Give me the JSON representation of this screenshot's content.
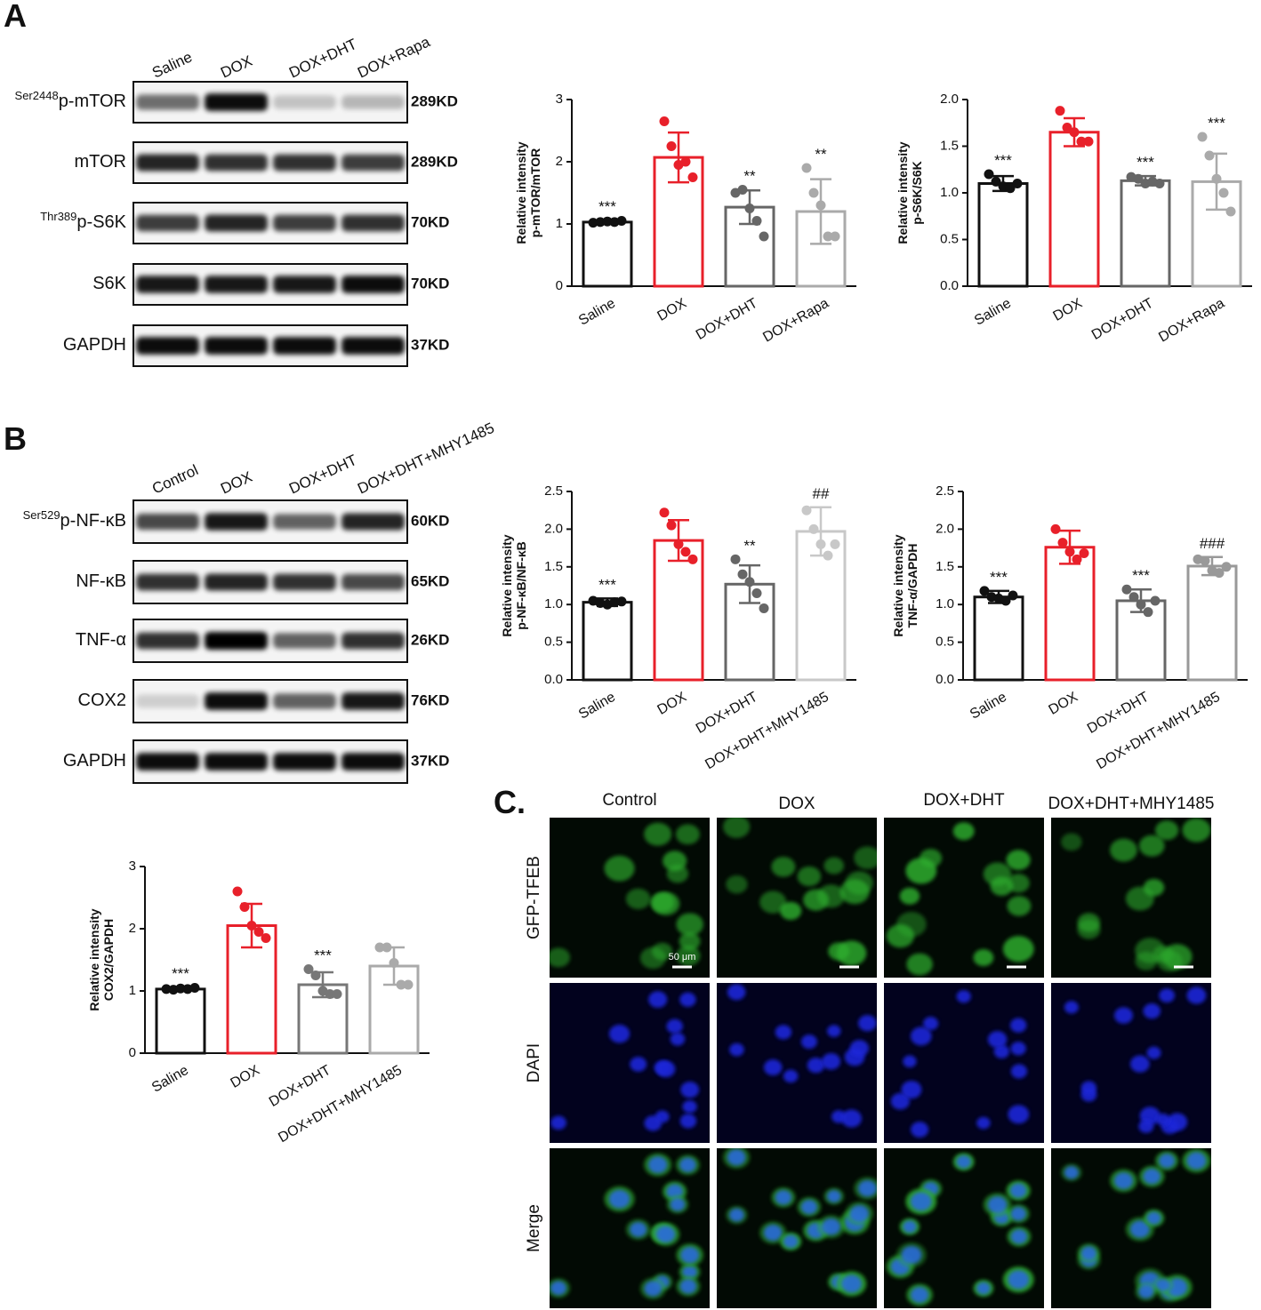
{
  "panel_labels": [
    "A",
    "B",
    "C."
  ],
  "blots": [
    {
      "lanes": [
        "Saline",
        "DOX",
        "DOX+DHT",
        "DOX+Rapa"
      ],
      "rows": [
        {
          "modifier": "Ser2448",
          "label": "p-mTOR",
          "size": "289KD"
        },
        {
          "label": "mTOR",
          "size": "289KD"
        },
        {
          "modifier": "Thr389",
          "label": "p-S6K",
          "size": "70KD"
        },
        {
          "label": "S6K",
          "size": "70KD"
        },
        {
          "label": "GAPDH",
          "size": "37KD"
        }
      ]
    },
    {
      "lanes": [
        "Control",
        "DOX",
        "DOX+DHT",
        "DOX+DHT+MHY1485"
      ],
      "rows": [
        {
          "modifier": "Ser529",
          "label": "p-NF-κB",
          "size": "60KD"
        },
        {
          "label": "NF-κB",
          "size": "65KD"
        },
        {
          "label": "TNF-α",
          "size": "26KD"
        },
        {
          "label": "COX2",
          "size": "76KD"
        },
        {
          "label": "GAPDH",
          "size": "37KD"
        }
      ]
    }
  ],
  "microscopy": {
    "columns": [
      "Control",
      "DOX",
      "DOX+DHT",
      "DOX+DHT+MHY1485"
    ],
    "rows": [
      "GFP-TFEB",
      "DAPI",
      "Merge"
    ],
    "scale_bar": "50 μm"
  },
  "chart_data": [
    {
      "type": "bar",
      "ylabel": [
        "Relative intensity",
        "p-mTOR/mTOR"
      ],
      "categories": [
        "Saline",
        "DOX",
        "DOX+DHT",
        "DOX+Rapa"
      ],
      "values": [
        1.03,
        2.07,
        1.27,
        1.2
      ],
      "errors": [
        0.03,
        0.4,
        0.27,
        0.52
      ],
      "points": [
        [
          1.02,
          1.03,
          1.04,
          1.03,
          1.05
        ],
        [
          2.65,
          2.25,
          1.95,
          2.0,
          1.75
        ],
        [
          1.5,
          1.55,
          1.25,
          1.05,
          0.8
        ],
        [
          1.9,
          1.5,
          1.3,
          0.8,
          0.8
        ]
      ],
      "annotations": [
        "***",
        null,
        "**",
        "**"
      ],
      "colors": [
        "#111111",
        "#e8202a",
        "#666666",
        "#aaaaaa"
      ],
      "ylim": [
        0,
        3
      ],
      "yticks": [
        0,
        1,
        2,
        3
      ]
    },
    {
      "type": "bar",
      "ylabel": [
        "Relative intensity",
        "p-S6K/S6K"
      ],
      "categories": [
        "Saline",
        "DOX",
        "DOX+DHT",
        "DOX+Rapa"
      ],
      "values": [
        1.1,
        1.65,
        1.13,
        1.12
      ],
      "errors": [
        0.08,
        0.15,
        0.05,
        0.3
      ],
      "points": [
        [
          1.2,
          1.12,
          1.07,
          1.05,
          1.1
        ],
        [
          1.88,
          1.7,
          1.65,
          1.55,
          1.55
        ],
        [
          1.17,
          1.15,
          1.1,
          1.12,
          1.1
        ],
        [
          1.6,
          1.4,
          1.15,
          1.0,
          0.8
        ]
      ],
      "annotations": [
        "***",
        null,
        "***",
        "***"
      ],
      "colors": [
        "#111111",
        "#e8202a",
        "#666666",
        "#aaaaaa"
      ],
      "ylim": [
        0,
        2
      ],
      "yticks": [
        {
          "value": 0,
          "label": "0.0"
        },
        0.5,
        {
          "value": 1,
          "label": "1.0"
        },
        1.5,
        {
          "value": 2,
          "label": "2.0"
        }
      ]
    },
    {
      "type": "bar",
      "ylabel": [
        "Relative intensity",
        "p-NF-κB/NF-κB"
      ],
      "categories": [
        "Saline",
        "DOX",
        "DOX+DHT",
        "DOX+DHT+MHY1485"
      ],
      "values": [
        1.03,
        1.85,
        1.27,
        1.97
      ],
      "errors": [
        0.05,
        0.27,
        0.25,
        0.32
      ],
      "points": [
        [
          1.05,
          1.02,
          1.0,
          1.03,
          1.04
        ],
        [
          2.22,
          2.05,
          1.8,
          1.7,
          1.6
        ],
        [
          1.6,
          1.4,
          1.3,
          1.15,
          0.95
        ],
        [
          2.25,
          2.0,
          1.8,
          1.65,
          1.8
        ]
      ],
      "annotations": [
        "***",
        null,
        "**",
        "##"
      ],
      "colors": [
        "#111111",
        "#e8202a",
        "#666666",
        "#c8c8c8"
      ],
      "ylim": [
        0,
        2.5
      ],
      "yticks": [
        {
          "value": 0,
          "label": "0.0"
        },
        0.5,
        {
          "value": 1,
          "label": "1.0"
        },
        1.5,
        {
          "value": 2,
          "label": "2.0"
        },
        2.5
      ]
    },
    {
      "type": "bar",
      "ylabel": [
        "Relative intensity",
        "TNF-α/GAPDH"
      ],
      "categories": [
        "Saline",
        "DOX",
        "DOX+DHT",
        "DOX+DHT+MHY1485"
      ],
      "values": [
        1.1,
        1.76,
        1.05,
        1.51
      ],
      "errors": [
        0.08,
        0.22,
        0.15,
        0.12
      ],
      "points": [
        [
          1.18,
          1.1,
          1.08,
          1.05,
          1.12
        ],
        [
          2.0,
          1.82,
          1.7,
          1.6,
          1.68
        ],
        [
          1.2,
          1.1,
          1.0,
          0.9,
          1.05
        ],
        [
          1.6,
          1.58,
          1.45,
          1.42,
          1.5
        ]
      ],
      "annotations": [
        "***",
        null,
        "***",
        "###"
      ],
      "colors": [
        "#111111",
        "#e8202a",
        "#666666",
        "#999999"
      ],
      "ylim": [
        0,
        2.5
      ],
      "yticks": [
        {
          "value": 0,
          "label": "0.0"
        },
        0.5,
        {
          "value": 1,
          "label": "1.0"
        },
        1.5,
        {
          "value": 2,
          "label": "2.0"
        },
        2.5
      ]
    },
    {
      "type": "bar",
      "ylabel": [
        "Relative intensity",
        "COX2/GAPDH"
      ],
      "categories": [
        "Saline",
        "DOX",
        "DOX+DHT",
        "DOX+DHT+MHY1485"
      ],
      "values": [
        1.03,
        2.05,
        1.1,
        1.4
      ],
      "errors": [
        0.03,
        0.35,
        0.2,
        0.3
      ],
      "points": [
        [
          1.03,
          1.02,
          1.04,
          1.03,
          1.05
        ],
        [
          2.6,
          2.35,
          2.05,
          1.95,
          1.85
        ],
        [
          1.35,
          1.25,
          1.0,
          0.95,
          0.95
        ],
        [
          1.7,
          1.7,
          1.45,
          1.1,
          1.1
        ]
      ],
      "annotations": [
        "***",
        null,
        "***",
        null
      ],
      "colors": [
        "#111111",
        "#e8202a",
        "#777777",
        "#aaaaaa"
      ],
      "ylim": [
        0,
        3
      ],
      "yticks": [
        0,
        1,
        2,
        3
      ]
    }
  ]
}
